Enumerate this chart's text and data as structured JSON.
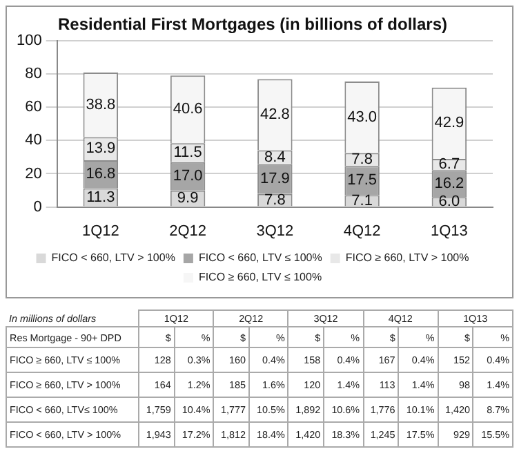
{
  "chart_data": [
    {
      "type": "bar",
      "title": "Residential First Mortgages (in billions of dollars)",
      "categories": [
        "1Q12",
        "2Q12",
        "3Q12",
        "4Q12",
        "1Q13"
      ],
      "stacked": true,
      "grid": "y",
      "legend": "bottom",
      "ylim": [
        0,
        100
      ],
      "yticks": [
        0,
        20,
        40,
        60,
        80,
        100
      ],
      "series": [
        {
          "name": "FICO < 660, LTV > 100%",
          "color": "#d9d9d9",
          "values": [
            11.3,
            9.9,
            7.8,
            7.1,
            6.0
          ],
          "value_labels": [
            "11.3",
            "9.9",
            "7.8",
            "7.1",
            "6.0"
          ]
        },
        {
          "name": "FICO < 660, LTV ≤ 100%",
          "color": "#a6a6a6",
          "values": [
            16.8,
            17.0,
            17.9,
            17.5,
            16.2
          ],
          "value_labels": [
            "16.8",
            "17.0",
            "17.9",
            "17.5",
            "16.2"
          ]
        },
        {
          "name": "FICO ≥ 660, LTV > 100%",
          "color": "#e8e8e8",
          "values": [
            13.9,
            11.5,
            8.4,
            7.8,
            6.7
          ],
          "value_labels": [
            "13.9",
            "11.5",
            "8.4",
            "7.8",
            "6.7"
          ]
        },
        {
          "name": "FICO ≥ 660, LTV ≤ 100%",
          "color": "#f6f6f6",
          "values": [
            38.8,
            40.6,
            42.8,
            43.0,
            42.9
          ],
          "value_labels": [
            "38.8",
            "40.6",
            "42.8",
            "43.0",
            "42.9"
          ]
        }
      ]
    },
    {
      "type": "other",
      "title": "In millions of dollars",
      "categories": [
        "1Q12",
        "2Q12",
        "3Q12",
        "4Q12",
        "1Q13"
      ],
      "y_categories": [
        "Res Mortgage - 90+ DPD",
        "FICO ≥ 660, LTV ≤ 100%",
        "FICO ≥ 660, LTV > 100%",
        "FICO < 660, LTV≤ 100%",
        "FICO < 660, LTV > 100%"
      ],
      "cell_labels": [
        [
          "$",
          "%",
          "$",
          "%",
          "$",
          "%",
          "$",
          "%",
          "$",
          "%"
        ],
        [
          "128",
          "0.3%",
          "160",
          "0.4%",
          "158",
          "0.4%",
          "167",
          "0.4%",
          "152",
          "0.4%"
        ],
        [
          "164",
          "1.2%",
          "185",
          "1.6%",
          "120",
          "1.4%",
          "113",
          "1.4%",
          "98",
          "1.4%"
        ],
        [
          "1,759",
          "10.4%",
          "1,777",
          "10.5%",
          "1,892",
          "10.6%",
          "1,776",
          "10.1%",
          "1,420",
          "8.7%"
        ],
        [
          "1,943",
          "17.2%",
          "1,812",
          "18.4%",
          "1,420",
          "18.3%",
          "1,245",
          "17.5%",
          "929",
          "15.5%"
        ]
      ]
    }
  ]
}
